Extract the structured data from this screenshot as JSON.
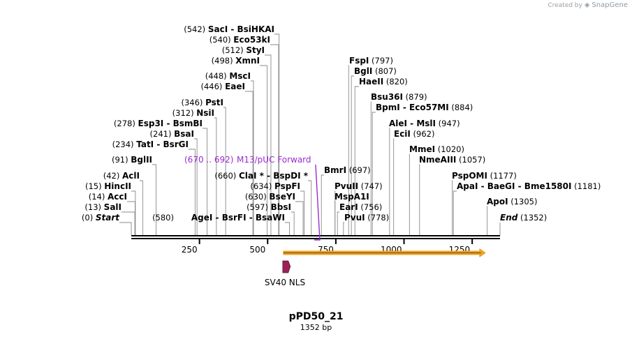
{
  "credit": {
    "text": "Created by",
    "brand": "SnapGene"
  },
  "plasmid": {
    "name": "pPD50_21",
    "length_label": "1352 bp",
    "length": 1352
  },
  "ticks": [
    {
      "value": 250,
      "label": "250"
    },
    {
      "value": 500,
      "label": "500"
    },
    {
      "value": 750,
      "label": "750"
    },
    {
      "value": 1000,
      "label": "1000"
    },
    {
      "value": 1250,
      "label": "1250"
    }
  ],
  "features": [
    {
      "name": "SV40 NLS",
      "label": "SV40 NLS",
      "start": 558,
      "end": 578,
      "color": "#9b2257"
    }
  ],
  "orf": {
    "start": 558,
    "end": 1298,
    "color": "#f5a623",
    "edge": "#e08a00"
  },
  "primer": {
    "label": "M13/pUC Forward",
    "range": "(670 .. 692)",
    "site": 681,
    "color": "#9a2bd0"
  },
  "sites": [
    {
      "pos": "(0)",
      "name": "Start",
      "italic": true,
      "cut": 0
    },
    {
      "pos": "(13)",
      "name": "SalI",
      "cut": 13
    },
    {
      "pos": "(14)",
      "name": "AccI",
      "cut": 14
    },
    {
      "pos": "(15)",
      "name": "HincII",
      "cut": 15
    },
    {
      "pos": "(42)",
      "name": "AclI",
      "cut": 42
    },
    {
      "pos": "(91)",
      "name": "BglII",
      "cut": 91
    },
    {
      "pos": "(234)",
      "name": "TatI  - BsrGI",
      "cut": 234
    },
    {
      "pos": "(241)",
      "name": "BsaI",
      "cut": 241
    },
    {
      "pos": "(278)",
      "name": "Esp3I  - BsmBI",
      "cut": 278
    },
    {
      "pos": "(312)",
      "name": "NsiI",
      "cut": 312
    },
    {
      "pos": "(346)",
      "name": "PstI",
      "cut": 346
    },
    {
      "pos": "(446)",
      "name": "EaeI",
      "cut": 446
    },
    {
      "pos": "(448)",
      "name": "MscI",
      "cut": 448
    },
    {
      "pos": "(498)",
      "name": "XmnI",
      "cut": 498
    },
    {
      "pos": "(512)",
      "name": "StyI",
      "cut": 512
    },
    {
      "pos": "(540)",
      "name": "Eco53kI",
      "cut": 540
    },
    {
      "pos": "(542)",
      "name": "SacI  - BsiHKAI",
      "cut": 542
    },
    {
      "name": "AgeI  - BsrFI  - BsaWI",
      "pos": "(580)",
      "pos_first": true,
      "cut": 580
    },
    {
      "pos": "(597)",
      "name": "BbsI",
      "cut": 597
    },
    {
      "pos": "(630)",
      "name": "BseYI",
      "cut": 630
    },
    {
      "pos": "(634)",
      "name": "PspFI",
      "cut": 634
    },
    {
      "pos": "(660)",
      "name": "ClaI *  - BspDI *",
      "cut": 660
    },
    {
      "name": "BmrI",
      "pos": "(697)",
      "cut": 697
    },
    {
      "name": "PvuII",
      "pos": "(747)",
      "cut": 747
    },
    {
      "name": "MspA1I",
      "pos": "",
      "cut": 747
    },
    {
      "name": "EarI",
      "pos": "(756)",
      "cut": 756
    },
    {
      "name": "PvuI",
      "pos": "(778)",
      "cut": 778
    },
    {
      "name": "FspI",
      "pos": "(797)",
      "cut": 797
    },
    {
      "name": "BglI",
      "pos": "(807)",
      "cut": 807
    },
    {
      "name": "HaeII",
      "pos": "(820)",
      "cut": 820
    },
    {
      "name": "Bsu36I",
      "pos": "(879)",
      "cut": 879
    },
    {
      "name": "BpmI  - Eco57MI",
      "pos": "(884)",
      "cut": 884
    },
    {
      "name": "AleI  - MslI",
      "pos": "(947)",
      "cut": 947
    },
    {
      "name": "EciI",
      "pos": "(962)",
      "cut": 962
    },
    {
      "name": "MmeI",
      "pos": "(1020)",
      "cut": 1020
    },
    {
      "name": "NmeAIII",
      "pos": "(1057)",
      "cut": 1057
    },
    {
      "name": "PspOMI",
      "pos": "(1177)",
      "cut": 1177
    },
    {
      "name": "ApaI  - BaeGI  - Bme1580I",
      "pos": "(1181)",
      "cut": 1181
    },
    {
      "name": "ApoI",
      "pos": "(1305)",
      "cut": 1305
    },
    {
      "name": "End",
      "italic": true,
      "pos": "(1352)",
      "cut": 1352
    }
  ]
}
